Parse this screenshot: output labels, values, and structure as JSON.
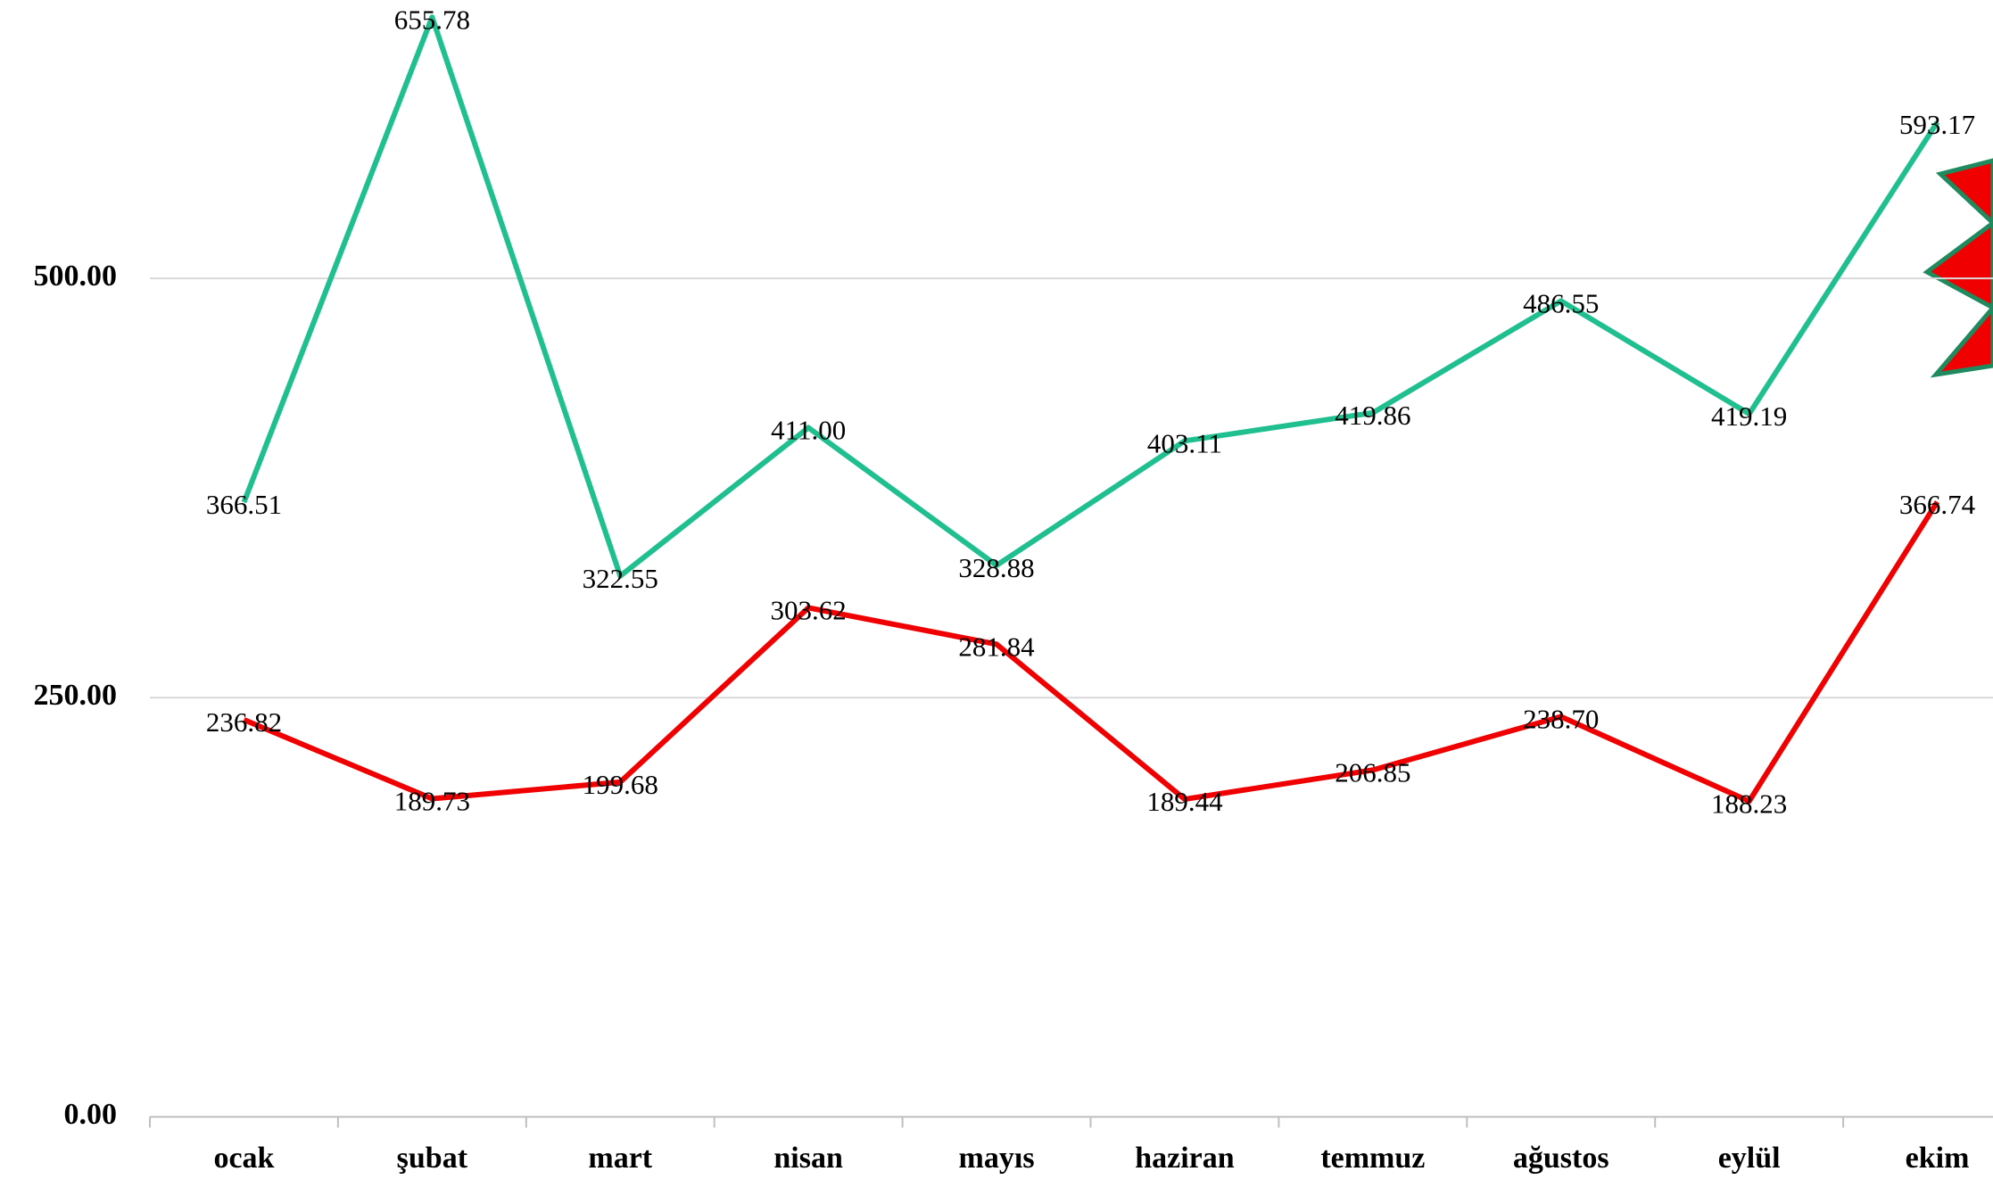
{
  "chart_data": {
    "type": "line",
    "categories": [
      "ocak",
      "şubat",
      "mart",
      "nisan",
      "mayıs",
      "haziran",
      "temmuz",
      "ağustos",
      "eylül",
      "ekim"
    ],
    "series": [
      {
        "color": "#1fbf8f",
        "values": [
          366.51,
          655.78,
          322.55,
          411.0,
          328.88,
          403.11,
          419.86,
          486.55,
          419.19,
          593.17
        ],
        "value_labels": [
          "366.51",
          "655.78",
          "322.55",
          "411.00",
          "328.88",
          "403.11",
          "419.86",
          "486.55",
          "419.19",
          "593.17"
        ]
      },
      {
        "color": "#f00000",
        "values": [
          236.82,
          189.73,
          199.68,
          303.62,
          281.84,
          189.44,
          206.85,
          238.7,
          188.23,
          366.74
        ],
        "value_labels": [
          "236.82",
          "189.73",
          "199.68",
          "303.62",
          "281.84",
          "189.44",
          "206.85",
          "238.70",
          "188.23",
          "366.74"
        ]
      }
    ],
    "ylim": [
      0,
      666
    ],
    "yticks": [
      {
        "value": 0,
        "label": "0.00"
      },
      {
        "value": 250,
        "label": "250.00"
      },
      {
        "value": 500,
        "label": "500.00"
      }
    ],
    "grid": true
  }
}
